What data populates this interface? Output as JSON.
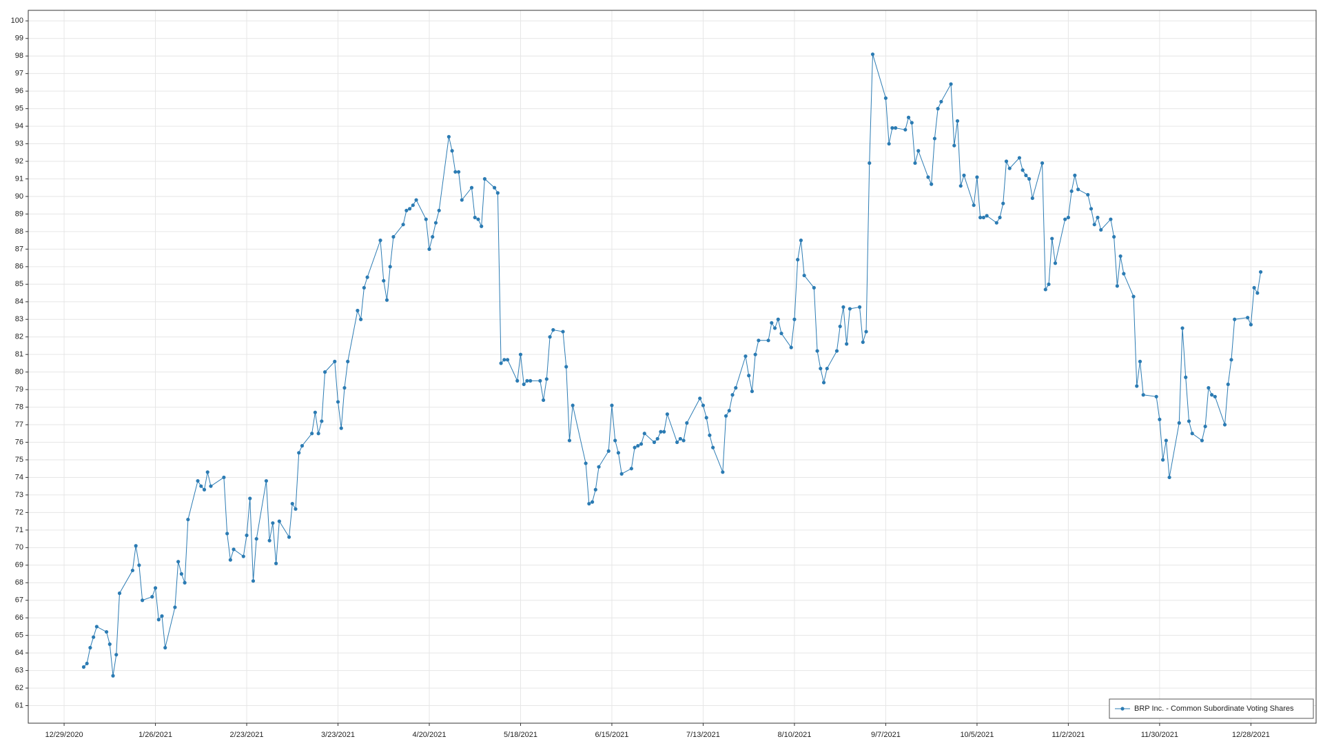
{
  "chart_data": {
    "type": "line",
    "x": [
      "1/4/2021",
      "1/5/2021",
      "1/6/2021",
      "1/7/2021",
      "1/8/2021",
      "1/11/2021",
      "1/12/2021",
      "1/13/2021",
      "1/14/2021",
      "1/15/2021",
      "1/19/2021",
      "1/20/2021",
      "1/21/2021",
      "1/22/2021",
      "1/25/2021",
      "1/26/2021",
      "1/27/2021",
      "1/28/2021",
      "1/29/2021",
      "2/1/2021",
      "2/2/2021",
      "2/3/2021",
      "2/4/2021",
      "2/5/2021",
      "2/8/2021",
      "2/9/2021",
      "2/10/2021",
      "2/11/2021",
      "2/12/2021",
      "2/16/2021",
      "2/17/2021",
      "2/18/2021",
      "2/19/2021",
      "2/22/2021",
      "2/23/2021",
      "2/24/2021",
      "2/25/2021",
      "2/26/2021",
      "3/1/2021",
      "3/2/2021",
      "3/3/2021",
      "3/4/2021",
      "3/5/2021",
      "3/8/2021",
      "3/9/2021",
      "3/10/2021",
      "3/11/2021",
      "3/12/2021",
      "3/15/2021",
      "3/16/2021",
      "3/17/2021",
      "3/18/2021",
      "3/19/2021",
      "3/22/2021",
      "3/23/2021",
      "3/24/2021",
      "3/25/2021",
      "3/26/2021",
      "3/29/2021",
      "3/30/2021",
      "3/31/2021",
      "4/1/2021",
      "4/5/2021",
      "4/6/2021",
      "4/7/2021",
      "4/8/2021",
      "4/9/2021",
      "4/12/2021",
      "4/13/2021",
      "4/14/2021",
      "4/15/2021",
      "4/16/2021",
      "4/19/2021",
      "4/20/2021",
      "4/21/2021",
      "4/22/2021",
      "4/23/2021",
      "4/26/2021",
      "4/27/2021",
      "4/28/2021",
      "4/29/2021",
      "4/30/2021",
      "5/3/2021",
      "5/4/2021",
      "5/5/2021",
      "5/6/2021",
      "5/7/2021",
      "5/10/2021",
      "5/11/2021",
      "5/12/2021",
      "5/13/2021",
      "5/14/2021",
      "5/17/2021",
      "5/18/2021",
      "5/19/2021",
      "5/20/2021",
      "5/21/2021",
      "5/24/2021",
      "5/25/2021",
      "5/26/2021",
      "5/27/2021",
      "5/28/2021",
      "5/31/2021",
      "6/1/2021",
      "6/2/2021",
      "6/3/2021",
      "6/7/2021",
      "6/8/2021",
      "6/9/2021",
      "6/10/2021",
      "6/11/2021",
      "6/14/2021",
      "6/15/2021",
      "6/16/2021",
      "6/17/2021",
      "6/18/2021",
      "6/21/2021",
      "6/22/2021",
      "6/23/2021",
      "6/24/2021",
      "6/25/2021",
      "6/28/2021",
      "6/29/2021",
      "6/30/2021",
      "7/1/2021",
      "7/2/2021",
      "7/5/2021",
      "7/6/2021",
      "7/7/2021",
      "7/8/2021",
      "7/12/2021",
      "7/13/2021",
      "7/14/2021",
      "7/15/2021",
      "7/16/2021",
      "7/19/2021",
      "7/20/2021",
      "7/21/2021",
      "7/22/2021",
      "7/23/2021",
      "7/26/2021",
      "7/27/2021",
      "7/28/2021",
      "7/29/2021",
      "7/30/2021",
      "8/2/2021",
      "8/3/2021",
      "8/4/2021",
      "8/5/2021",
      "8/6/2021",
      "8/9/2021",
      "8/10/2021",
      "8/11/2021",
      "8/12/2021",
      "8/13/2021",
      "8/16/2021",
      "8/17/2021",
      "8/18/2021",
      "8/19/2021",
      "8/20/2021",
      "8/23/2021",
      "8/24/2021",
      "8/25/2021",
      "8/26/2021",
      "8/27/2021",
      "8/30/2021",
      "8/31/2021",
      "9/1/2021",
      "9/2/2021",
      "9/3/2021",
      "9/7/2021",
      "9/8/2021",
      "9/9/2021",
      "9/10/2021",
      "9/13/2021",
      "9/14/2021",
      "9/15/2021",
      "9/16/2021",
      "9/17/2021",
      "9/20/2021",
      "9/21/2021",
      "9/22/2021",
      "9/23/2021",
      "9/24/2021",
      "9/27/2021",
      "9/28/2021",
      "9/29/2021",
      "9/30/2021",
      "10/1/2021",
      "10/4/2021",
      "10/5/2021",
      "10/6/2021",
      "10/7/2021",
      "10/8/2021",
      "10/11/2021",
      "10/12/2021",
      "10/13/2021",
      "10/14/2021",
      "10/15/2021",
      "10/18/2021",
      "10/19/2021",
      "10/20/2021",
      "10/21/2021",
      "10/22/2021",
      "10/25/2021",
      "10/26/2021",
      "10/27/2021",
      "10/28/2021",
      "10/29/2021",
      "11/1/2021",
      "11/2/2021",
      "11/3/2021",
      "11/4/2021",
      "11/5/2021",
      "11/8/2021",
      "11/9/2021",
      "11/10/2021",
      "11/11/2021",
      "11/12/2021",
      "11/15/2021",
      "11/16/2021",
      "11/17/2021",
      "11/18/2021",
      "11/19/2021",
      "11/22/2021",
      "11/23/2021",
      "11/24/2021",
      "11/25/2021",
      "11/29/2021",
      "11/30/2021",
      "12/1/2021",
      "12/2/2021",
      "12/3/2021",
      "12/6/2021",
      "12/7/2021",
      "12/8/2021",
      "12/9/2021",
      "12/10/2021",
      "12/13/2021",
      "12/14/2021",
      "12/15/2021",
      "12/16/2021",
      "12/17/2021",
      "12/20/2021",
      "12/21/2021",
      "12/22/2021",
      "12/23/2021",
      "12/27/2021",
      "12/28/2021",
      "12/29/2021",
      "12/30/2021",
      "12/31/2021"
    ],
    "series": [
      {
        "name": "BRP Inc. - Common Subordinate Voting Shares",
        "color": "#2b7bb3",
        "values": [
          63.2,
          63.4,
          64.3,
          64.9,
          65.5,
          65.2,
          64.5,
          62.7,
          63.9,
          67.4,
          68.7,
          70.1,
          69.0,
          67.0,
          67.2,
          67.7,
          65.9,
          66.1,
          64.3,
          66.6,
          69.2,
          68.5,
          68.0,
          71.6,
          73.8,
          73.5,
          73.3,
          74.3,
          73.5,
          74.0,
          70.8,
          69.3,
          69.9,
          69.5,
          70.7,
          72.8,
          68.1,
          70.5,
          73.8,
          70.4,
          71.4,
          69.1,
          71.5,
          70.6,
          72.5,
          72.2,
          75.4,
          75.8,
          76.5,
          77.7,
          76.5,
          77.2,
          80.0,
          80.6,
          78.3,
          76.8,
          79.1,
          80.6,
          83.5,
          83.0,
          84.8,
          85.4,
          87.5,
          85.2,
          84.1,
          86.0,
          87.7,
          88.4,
          89.2,
          89.3,
          89.5,
          89.8,
          88.7,
          87.0,
          87.7,
          88.5,
          89.2,
          93.4,
          92.6,
          91.4,
          91.4,
          89.8,
          90.5,
          88.8,
          88.7,
          88.3,
          91.0,
          90.5,
          90.2,
          80.5,
          80.7,
          80.7,
          79.5,
          81.0,
          79.3,
          79.5,
          79.5,
          79.5,
          78.4,
          79.6,
          82.0,
          82.4,
          82.3,
          80.3,
          76.1,
          78.1,
          74.8,
          72.5,
          72.6,
          73.3,
          74.6,
          75.5,
          78.1,
          76.1,
          75.4,
          74.2,
          74.5,
          75.7,
          75.8,
          75.9,
          76.5,
          76.0,
          76.2,
          76.6,
          76.6,
          77.6,
          76.0,
          76.2,
          76.1,
          77.1,
          78.5,
          78.1,
          77.4,
          76.4,
          75.7,
          74.3,
          77.5,
          77.8,
          78.7,
          79.1,
          80.9,
          79.8,
          78.9,
          81.0,
          81.8,
          81.8,
          82.8,
          82.5,
          83.0,
          82.2,
          81.4,
          83.0,
          86.4,
          87.5,
          85.5,
          84.8,
          81.2,
          80.2,
          79.4,
          80.2,
          81.2,
          82.6,
          83.7,
          81.6,
          83.6,
          83.7,
          81.7,
          82.3,
          91.9,
          98.1,
          95.6,
          93.0,
          93.9,
          93.9,
          93.8,
          94.5,
          94.2,
          91.9,
          92.6,
          91.1,
          90.7,
          93.3,
          95.0,
          95.4,
          96.4,
          92.9,
          94.3,
          90.6,
          91.2,
          89.5,
          91.1,
          88.8,
          88.8,
          88.9,
          88.5,
          88.8,
          89.6,
          92.0,
          91.6,
          92.2,
          91.5,
          91.2,
          91.0,
          89.9,
          91.9,
          84.7,
          85.0,
          87.6,
          86.2,
          88.7,
          88.8,
          90.3,
          91.2,
          90.4,
          90.1,
          89.3,
          88.4,
          88.8,
          88.1,
          88.7,
          87.7,
          84.9,
          86.6,
          85.6,
          84.3,
          79.2,
          80.6,
          78.7,
          78.6,
          77.3,
          75.0,
          76.1,
          74.0,
          77.1,
          82.5,
          79.7,
          77.2,
          76.5,
          76.1,
          76.9,
          79.1,
          78.7,
          78.6,
          77.0,
          79.3,
          80.7,
          83.0,
          83.1,
          82.7,
          84.8,
          84.5,
          85.7
        ]
      }
    ],
    "xlim": [
      "12/18/2020",
      "1/17/2022"
    ],
    "xticks": [
      "12/29/2020",
      "1/26/2021",
      "2/23/2021",
      "3/23/2021",
      "4/20/2021",
      "5/18/2021",
      "6/15/2021",
      "7/13/2021",
      "8/10/2021",
      "9/7/2021",
      "10/5/2021",
      "11/2/2021",
      "11/30/2021",
      "12/28/2021"
    ],
    "ylim": [
      60,
      100.6
    ],
    "yticks": [
      61,
      62,
      63,
      64,
      65,
      66,
      67,
      68,
      69,
      70,
      71,
      72,
      73,
      74,
      75,
      76,
      77,
      78,
      79,
      80,
      81,
      82,
      83,
      84,
      85,
      86,
      87,
      88,
      89,
      90,
      91,
      92,
      93,
      94,
      95,
      96,
      97,
      98,
      99,
      100
    ],
    "grid": true,
    "legend": "lower right"
  }
}
